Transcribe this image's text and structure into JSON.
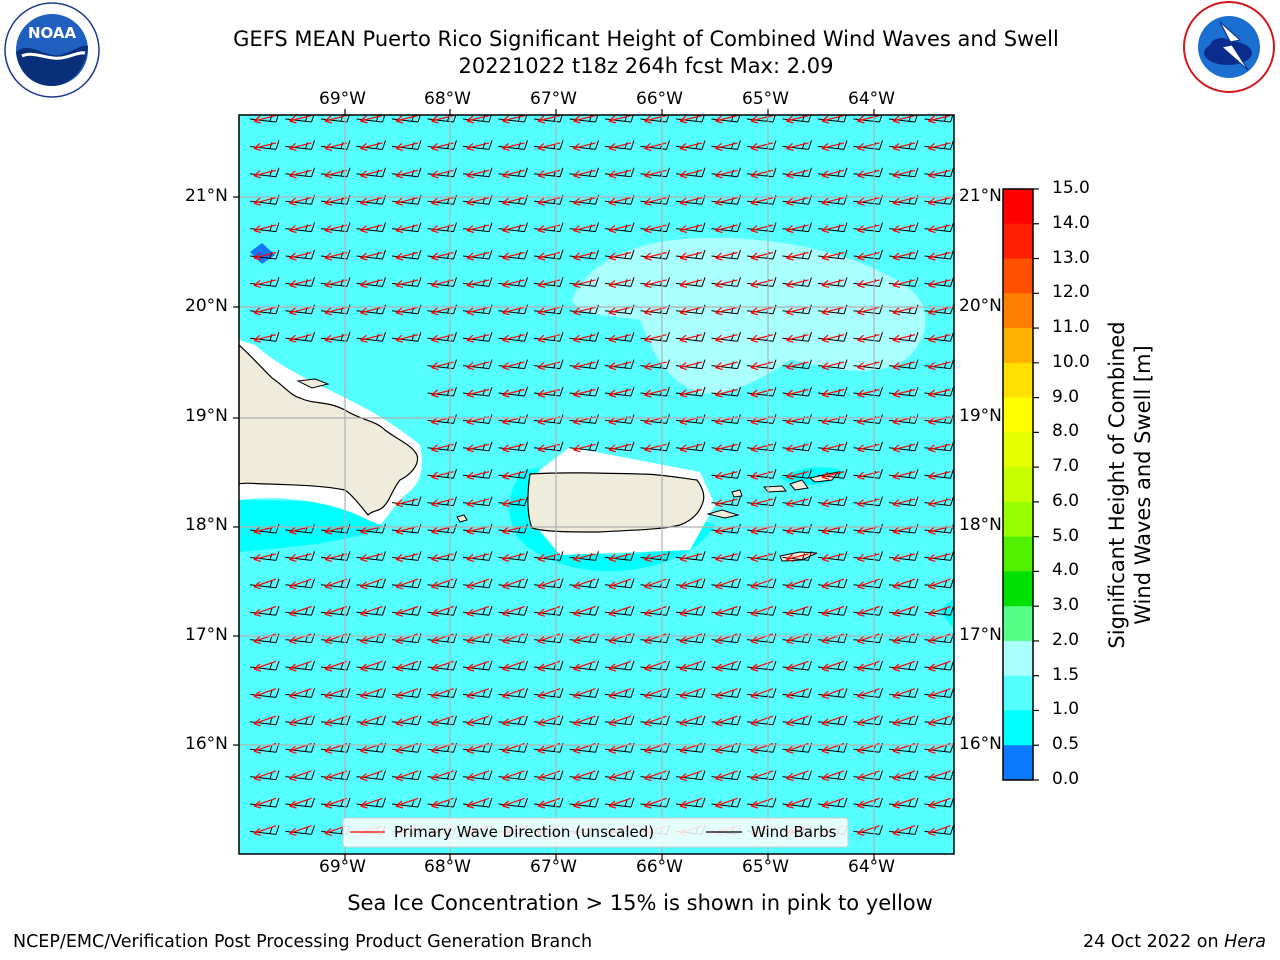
{
  "header": {
    "title_line1": "GEFS MEAN Puerto Rico Significant Height of Combined Wind Waves and Swell",
    "title_line2": "20221022 t18z 264h fcst   Max: 2.09"
  },
  "logos": {
    "left": {
      "icon": "noaa-logo",
      "text": "NOAA",
      "ring_text": "NATIONAL OCEANIC AND ATMOSPHERIC ADMINISTRATION · U.S. DEPARTMENT OF COMMERCE"
    },
    "right": {
      "icon": "nws-logo",
      "ring_text": "NATIONAL WEATHER SERVICE"
    }
  },
  "map": {
    "lon_labels": [
      "69°W",
      "68°W",
      "67°W",
      "66°W",
      "65°W",
      "64°W"
    ],
    "lat_labels": [
      "21°N",
      "20°N",
      "19°N",
      "18°N",
      "17°N",
      "16°N"
    ],
    "colors": {
      "ocean": "#55ffff",
      "ocean_low": "#00ffff",
      "ocean_high": "#aaffff",
      "land": "#efecdc",
      "blue_spot": "#0a78ff",
      "wave_arrow": "#ff0000",
      "barb": "#000000",
      "grid": "#b0b0b0"
    }
  },
  "legend": {
    "wave_label": "Primary Wave Direction (unscaled)",
    "barb_label": "Wind Barbs"
  },
  "colorbar": {
    "label_line1": "Significant Height of Combined",
    "label_line2": "Wind Waves and Swell [m]",
    "ticks": [
      "15.0",
      "14.0",
      "13.0",
      "12.0",
      "11.0",
      "10.0",
      "9.0",
      "8.0",
      "7.0",
      "6.0",
      "5.0",
      "4.0",
      "3.0",
      "2.0",
      "1.5",
      "1.0",
      "0.5",
      "0.0"
    ],
    "colors": [
      "#ff0000",
      "#ff2000",
      "#ff5000",
      "#ff8000",
      "#ffb000",
      "#ffe000",
      "#ffff00",
      "#e6ff00",
      "#c8ff00",
      "#96ff00",
      "#50f000",
      "#00e000",
      "#55ff88",
      "#aaffff",
      "#55ffff",
      "#00ffff",
      "#0a78ff",
      "#0000ff"
    ]
  },
  "footer": {
    "subtitle": "Sea Ice Concentration > 15% is shown in pink to yellow",
    "left": "NCEP/EMC/Verification Post Processing Product Generation Branch",
    "right_prefix": "24 Oct 2022 on ",
    "right_host": "Hera"
  }
}
